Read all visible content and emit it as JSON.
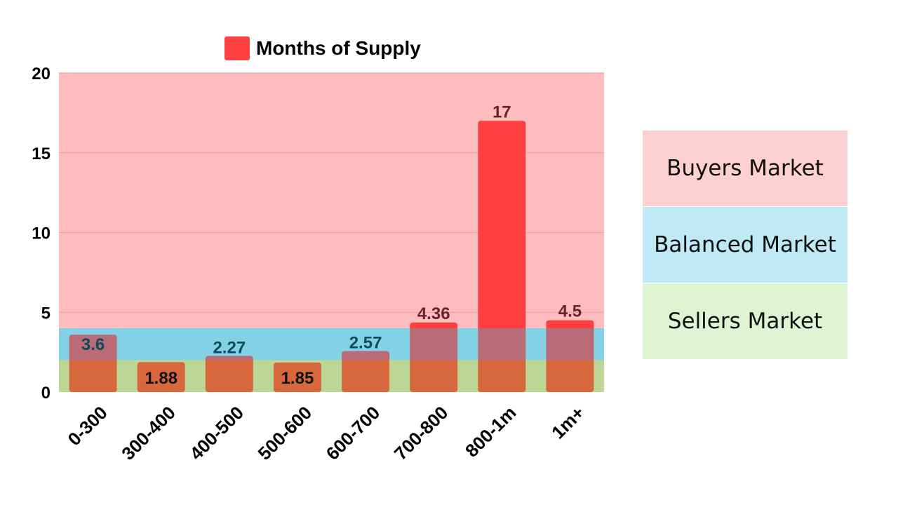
{
  "chart_data": {
    "type": "bar",
    "legend": "Months of Supply",
    "categories": [
      "0-300",
      "300-400",
      "400-500",
      "500-600",
      "600-700",
      "700-800",
      "800-1m",
      "1m+"
    ],
    "series": [
      {
        "name": "Months of Supply",
        "values": [
          3.6,
          1.88,
          2.27,
          1.85,
          2.57,
          4.36,
          17,
          4.5
        ]
      }
    ],
    "data_labels": [
      "3.6",
      "1.88",
      "2.27",
      "1.85",
      "2.57",
      "4.36",
      "17",
      "4.5"
    ],
    "y_ticks": [
      0,
      5,
      10,
      15,
      20
    ],
    "ylim": [
      0,
      20
    ],
    "grid": true,
    "bar_color": "#ff4040",
    "zones": [
      {
        "name": "Buyers Market",
        "from": 4,
        "to": 20,
        "color": "#ffbcbf"
      },
      {
        "name": "Balanced Market",
        "from": 2,
        "to": 4,
        "color": "#a8e4f1"
      },
      {
        "name": "Sellers Market",
        "from": 0,
        "to": 2,
        "color": "#d3f0c8"
      }
    ]
  },
  "zone_legend": [
    {
      "label": "Buyers Market",
      "color": "#fdd0d1"
    },
    {
      "label": "Balanced Market",
      "color": "#bfeaf5"
    },
    {
      "label": "Sellers Market",
      "color": "#def4d3"
    }
  ]
}
